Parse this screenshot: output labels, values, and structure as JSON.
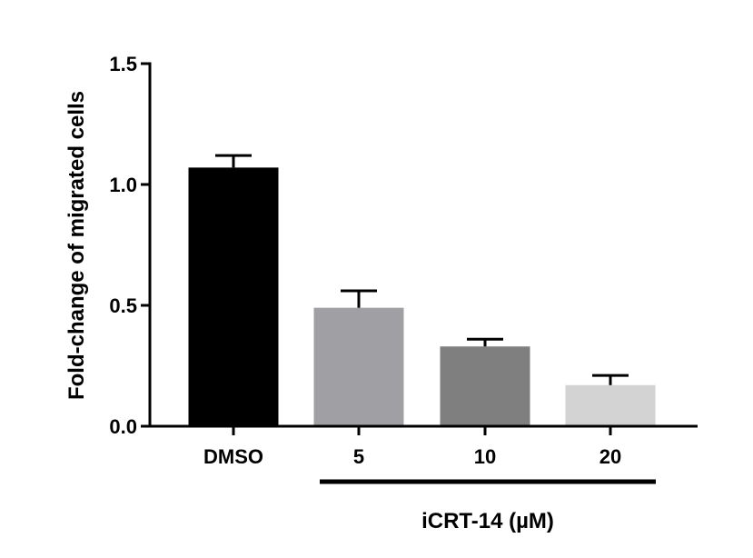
{
  "chart_data": {
    "type": "bar",
    "title": "",
    "ylabel": "Fold-change of migrated cells",
    "ylim": [
      0,
      1.5
    ],
    "yticks": [
      "0.0",
      "0.5",
      "1.0",
      "1.5"
    ],
    "categories": [
      "DMSO",
      "5",
      "10",
      "20"
    ],
    "values": [
      1.07,
      0.49,
      0.33,
      0.17
    ],
    "errors": [
      0.05,
      0.07,
      0.03,
      0.04
    ],
    "colors": [
      "#000000",
      "#a0a0a4",
      "#7f7f7f",
      "#d3d3d3"
    ],
    "group_label": "iCRT-14 (µM)",
    "grid": false
  }
}
